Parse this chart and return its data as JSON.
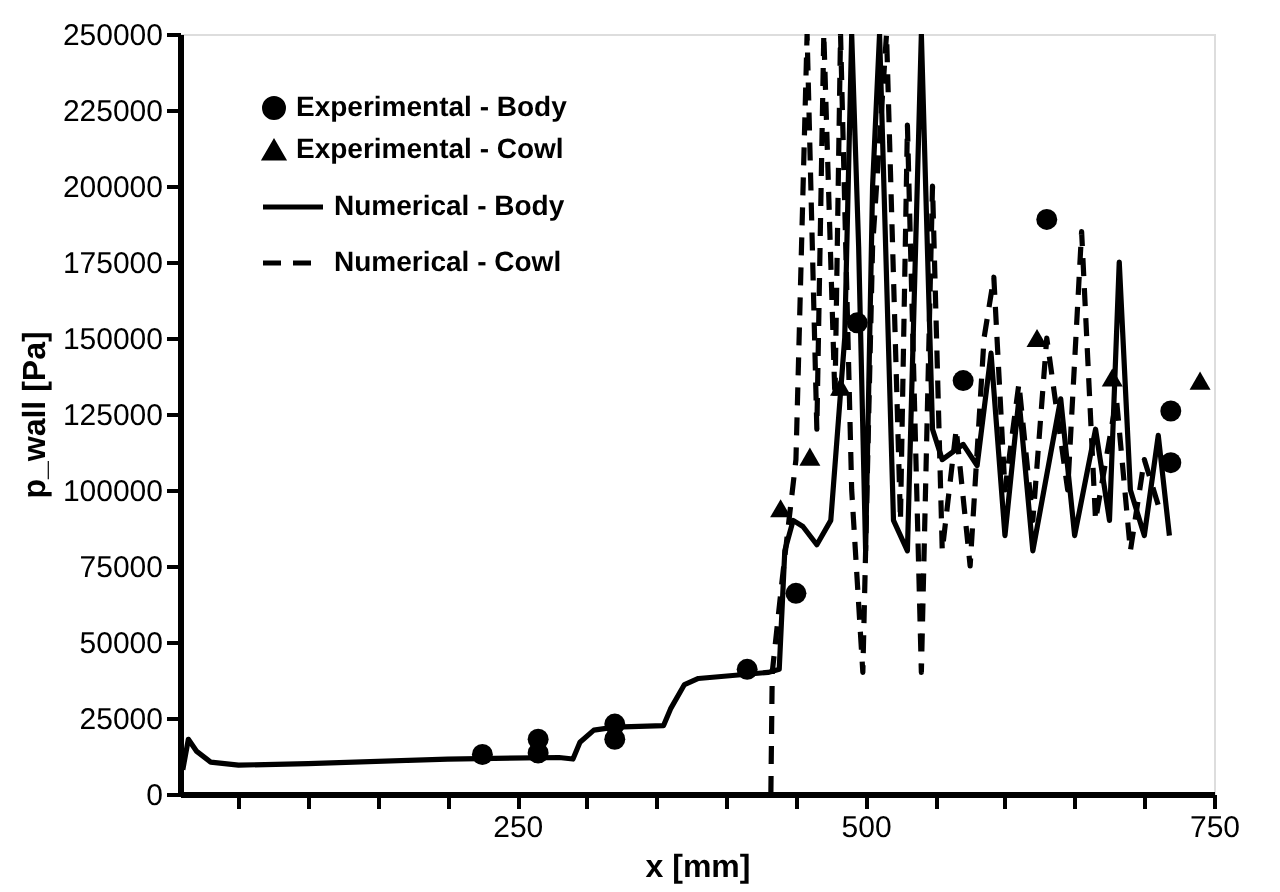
{
  "chart_data": {
    "type": "line",
    "xlabel": "x [mm]",
    "ylabel": "p_wall [Pa]",
    "xlim": [
      8,
      750
    ],
    "xticks": [
      {
        "value": 50,
        "label": null
      },
      {
        "value": 100,
        "label": null
      },
      {
        "value": 150,
        "label": null
      },
      {
        "value": 200,
        "label": null
      },
      250,
      {
        "value": 300,
        "label": null
      },
      {
        "value": 350,
        "label": null
      },
      {
        "value": 400,
        "label": null
      },
      {
        "value": 450,
        "label": null
      },
      500,
      {
        "value": 550,
        "label": null
      },
      {
        "value": 600,
        "label": null
      },
      {
        "value": 650,
        "label": null
      },
      {
        "value": 700,
        "label": null
      },
      750
    ],
    "ylim": [
      0,
      250000
    ],
    "yticks": [
      0,
      25000,
      50000,
      75000,
      100000,
      125000,
      150000,
      175000,
      200000,
      225000,
      250000
    ],
    "grid": false,
    "legend": "top left",
    "series": [
      {
        "name": "Experimental - Body",
        "type": "scatter",
        "marker": "circle",
        "color": "#000000",
        "x": [
          225,
          265,
          265,
          320,
          320,
          415,
          450,
          494,
          570,
          630,
          719,
          719
        ],
        "values": [
          13000,
          18000,
          13500,
          23000,
          18000,
          41000,
          66000,
          155000,
          136000,
          189000,
          126000,
          109000
        ]
      },
      {
        "name": "Experimental - Cowl",
        "type": "scatter",
        "marker": "triangle",
        "color": "#000000",
        "x": [
          439,
          460,
          482,
          623,
          677,
          740
        ],
        "values": [
          94000,
          111000,
          134000,
          150000,
          137000,
          136000
        ]
      },
      {
        "name": "Numerical - Body",
        "type": "line",
        "line_style": "solid",
        "color": "#000000",
        "x": [
          10,
          14,
          20,
          30,
          50,
          100,
          200,
          280,
          290,
          295,
          305,
          320,
          355,
          360,
          370,
          380,
          430,
          438,
          442,
          448,
          455,
          465,
          475,
          485,
          490,
          495,
          500,
          505,
          510,
          520,
          530,
          540,
          548,
          555,
          570,
          580,
          590,
          600,
          610,
          620,
          640,
          650,
          665,
          675,
          682,
          690,
          700,
          710,
          718
        ],
        "values": [
          8000,
          18000,
          14000,
          10500,
          9500,
          10000,
          11500,
          12000,
          11500,
          17000,
          21000,
          22000,
          22500,
          28000,
          36000,
          38000,
          40000,
          41000,
          80000,
          90000,
          88000,
          82000,
          90000,
          150000,
          250000,
          180000,
          80000,
          200000,
          250000,
          90000,
          80000,
          250000,
          120000,
          110000,
          115000,
          108000,
          145000,
          85000,
          130000,
          80000,
          130000,
          85000,
          120000,
          90000,
          175000,
          100000,
          85000,
          118000,
          85000
        ]
      },
      {
        "name": "Numerical - Cowl",
        "type": "line",
        "line_style": "dashed",
        "color": "#000000",
        "x": [
          432,
          433,
          440,
          450,
          458,
          465,
          470,
          478,
          482,
          490,
          498,
          505,
          515,
          525,
          530,
          540,
          548,
          555,
          565,
          575,
          585,
          592,
          600,
          610,
          620,
          630,
          645,
          655,
          665,
          680,
          690,
          700,
          710
        ],
        "values": [
          0,
          40000,
          70000,
          110000,
          250000,
          120000,
          250000,
          130000,
          250000,
          100000,
          40000,
          180000,
          250000,
          90000,
          220000,
          40000,
          200000,
          80000,
          120000,
          75000,
          150000,
          170000,
          100000,
          135000,
          90000,
          150000,
          100000,
          185000,
          90000,
          130000,
          80000,
          110000,
          95000
        ]
      }
    ]
  }
}
